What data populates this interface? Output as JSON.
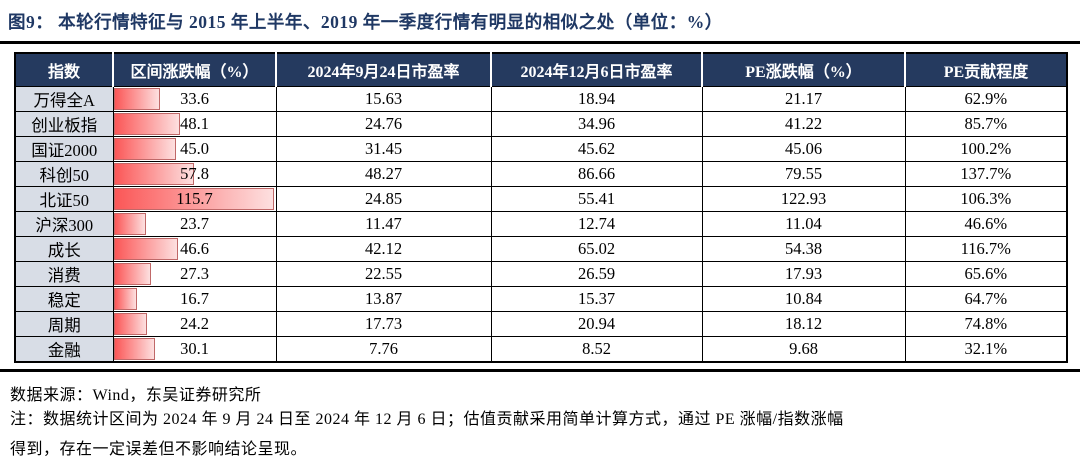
{
  "title": "图9：  本轮行情特征与 2015 年上半年、2019 年一季度行情有明显的相似之处（单位：%）",
  "table": {
    "columns": [
      "指数",
      "区间涨跌幅（%）",
      "2024年9月24日市盈率",
      "2024年12月6日市盈率",
      "PE涨跌幅（%）",
      "PE贡献程度"
    ],
    "rows": [
      {
        "name": "万得全A",
        "cells": [
          "33.6",
          "15.63",
          "18.94",
          "21.17",
          "62.9%"
        ]
      },
      {
        "name": "创业板指",
        "cells": [
          "48.1",
          "24.76",
          "34.96",
          "41.22",
          "85.7%"
        ]
      },
      {
        "name": "国证2000",
        "cells": [
          "45.0",
          "31.45",
          "45.62",
          "45.06",
          "100.2%"
        ]
      },
      {
        "name": "科创50",
        "cells": [
          "57.8",
          "48.27",
          "86.66",
          "79.55",
          "137.7%"
        ]
      },
      {
        "name": "北证50",
        "cells": [
          "115.7",
          "24.85",
          "55.41",
          "122.93",
          "106.3%"
        ]
      },
      {
        "name": "沪深300",
        "cells": [
          "23.7",
          "11.47",
          "12.74",
          "11.04",
          "46.6%"
        ]
      },
      {
        "name": "成长",
        "cells": [
          "46.6",
          "42.12",
          "65.02",
          "54.38",
          "116.7%"
        ]
      },
      {
        "name": "消费",
        "cells": [
          "27.3",
          "22.55",
          "26.59",
          "17.93",
          "65.6%"
        ]
      },
      {
        "name": "稳定",
        "cells": [
          "16.7",
          "13.87",
          "15.37",
          "10.84",
          "64.7%"
        ]
      },
      {
        "name": "周期",
        "cells": [
          "24.2",
          "17.73",
          "20.94",
          "18.12",
          "74.8%"
        ]
      },
      {
        "name": "金融",
        "cells": [
          "30.1",
          "7.76",
          "8.52",
          "9.68",
          "32.1%"
        ]
      }
    ],
    "bar_column": "区间涨跌幅（%）",
    "bar_max_value": 115.7
  },
  "colors": {
    "title_navy": "#1f3864",
    "header_bg": "#253a5f",
    "name_column_bg": "#d8dde6",
    "bar_gradient_start": "#fb5757",
    "bar_gradient_end": "#fde0e0",
    "bar_border": "#c06868"
  },
  "footer": {
    "source": "数据来源：Wind，东吴证券研究所",
    "note_line1": "注：数据统计区间为 2024 年 9 月 24 日至 2024 年 12 月 6 日；估值贡献采用简单计算方式，通过 PE 涨幅/指数涨幅",
    "note_line2": "得到，存在一定误差但不影响结论呈现。"
  }
}
